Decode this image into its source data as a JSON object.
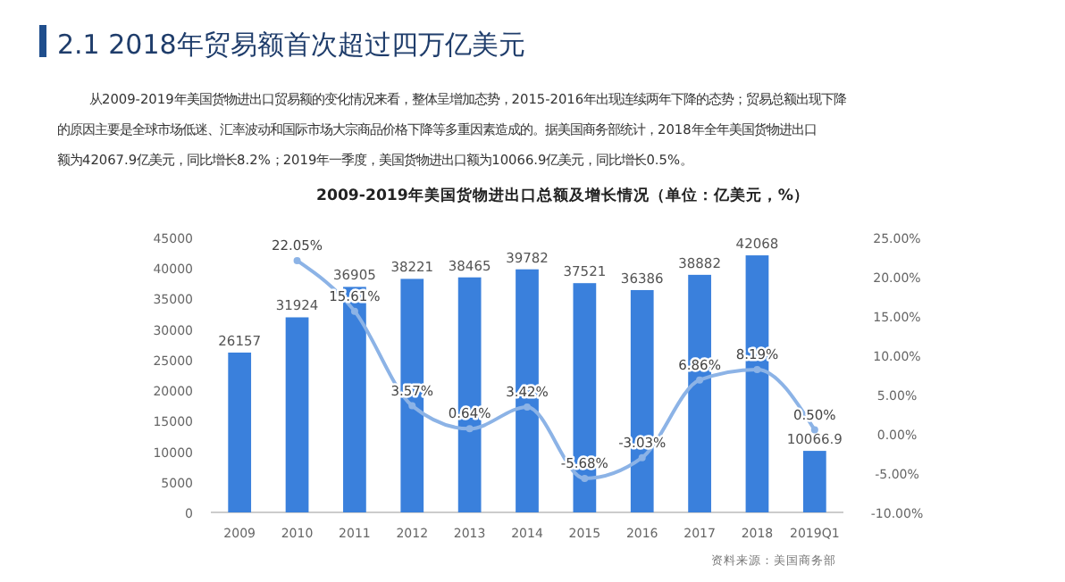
{
  "chart_data": {
    "type": "bar",
    "title": "2.1  2018年贸易额首次超过四万亿美元",
    "subtitle": "2009-2019年美国货物进出口总额及增长情况（单位：亿美元，%）",
    "annotations": [
      "从2009-2019年美国货物进出口贸易额的变化情况来看，整体呈增加态势，2015-2016年出现连续两年下降的态势；贸易总额出现下降",
      "的原因主要是全球市场低迷、汇率波动和国际市场大宗商品价格下降等多重因素造成的。据美国商务部统计，2018年全年美国货物进出口",
      "额为42067.9亿美元，同比增长8.2%；2019年一季度，美国货物进出口额为10066.9亿美元，同比增长0.5%。",
      "资料来源：美国商务部"
    ],
    "categories": [
      "2009",
      "2010",
      "2011",
      "2012",
      "2013",
      "2014",
      "2015",
      "2016",
      "2017",
      "2018",
      "2019Q1"
    ],
    "series": [
      {
        "color": "#3a80dc",
        "values": [
          26157,
          31924,
          36905,
          38221,
          38465,
          39782,
          37521,
          36386,
          38882,
          42068,
          10066.9
        ],
        "value_labels": [
          "26157",
          "31924",
          "36905",
          "38221",
          "38465",
          "39782",
          "37521",
          "36386",
          "38882",
          "42068",
          "10066.9"
        ]
      },
      {
        "type": "line",
        "axis": "y2",
        "color": "#8cb3e6",
        "marker": "circle",
        "values": [
          null,
          22.05,
          15.61,
          3.57,
          0.64,
          3.42,
          -5.68,
          -3.03,
          6.86,
          8.19,
          0.5
        ],
        "value_labels": [
          null,
          "22.05%",
          "15.61%",
          "3.57%",
          "0.64%",
          "3.42%",
          "-5.68%",
          "-3.03%",
          "6.86%",
          "8.19%",
          "0.50%"
        ]
      }
    ],
    "ylim": [
      0,
      45000
    ],
    "yticks": [
      0,
      5000,
      10000,
      15000,
      20000,
      25000,
      30000,
      35000,
      40000,
      45000
    ],
    "y2lim": [
      -10,
      25
    ],
    "y2ticks": [
      {
        "value": -10,
        "label": "-10.00%"
      },
      {
        "value": -5,
        "label": "-5.00%"
      },
      {
        "value": 0,
        "label": "0.00%"
      },
      {
        "value": 5,
        "label": "5.00%"
      },
      {
        "value": 10,
        "label": "10.00%"
      },
      {
        "value": 15,
        "label": "15.00%"
      },
      {
        "value": 20,
        "label": "20.00%"
      },
      {
        "value": 25,
        "label": "25.00%"
      }
    ],
    "grid": false
  }
}
